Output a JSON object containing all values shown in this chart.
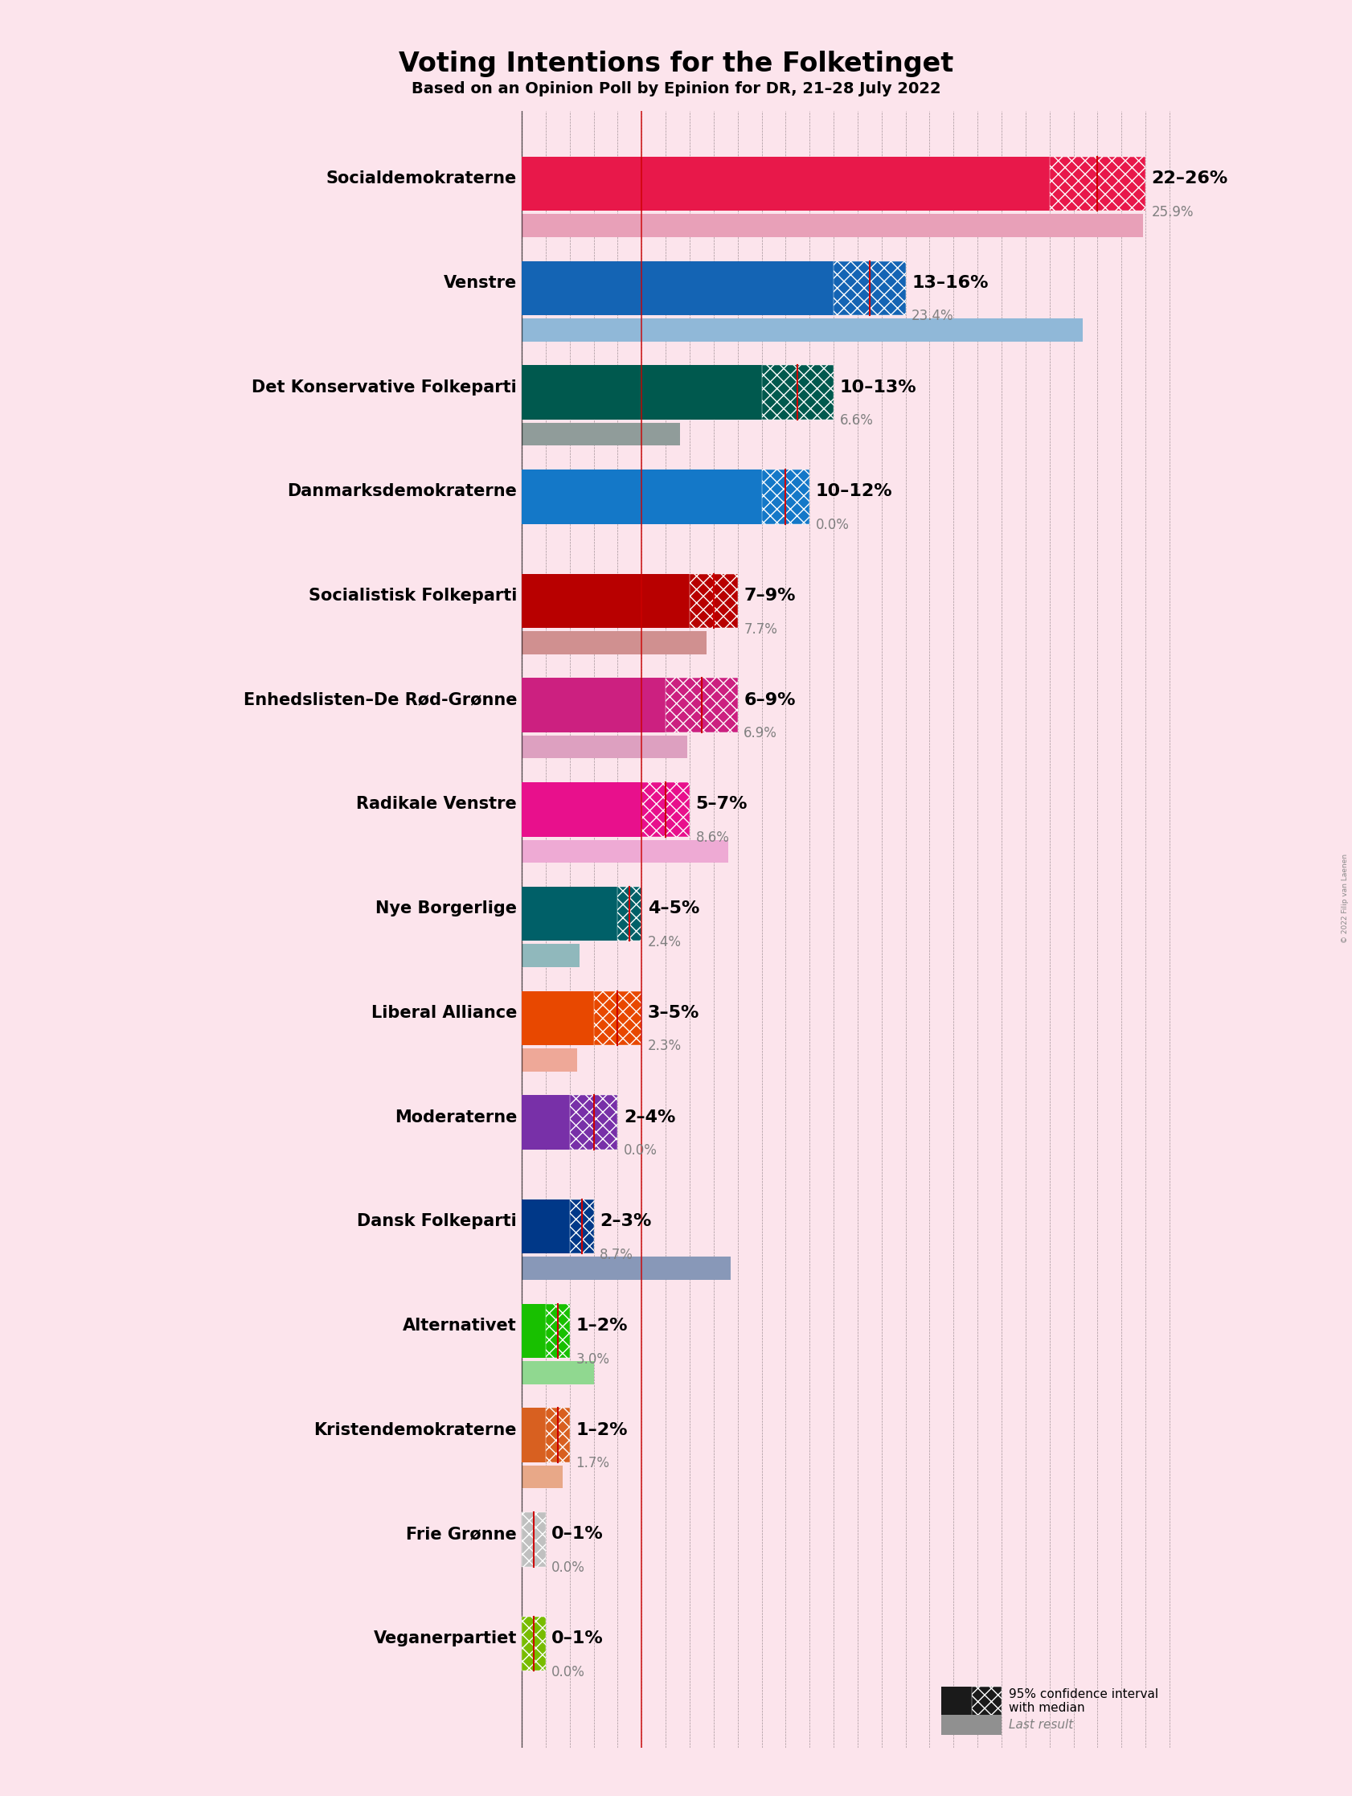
{
  "title": "Voting Intentions for the Folketinget",
  "subtitle": "Based on an Opinion Poll by Epinion for DR, 21–28 July 2022",
  "copyright": "© 2022 Filip van Laenen",
  "background_color": "#fce4ec",
  "parties": [
    {
      "name": "Socialdemokraterne",
      "ci_low": 22,
      "ci_high": 26,
      "median": 24,
      "last": 25.9,
      "color": "#e8184a",
      "last_color": "#e8a0b8"
    },
    {
      "name": "Venstre",
      "ci_low": 13,
      "ci_high": 16,
      "median": 14.5,
      "last": 23.4,
      "color": "#1464b4",
      "last_color": "#90b8d8"
    },
    {
      "name": "Det Konservative Folkeparti",
      "ci_low": 10,
      "ci_high": 13,
      "median": 11.5,
      "last": 6.6,
      "color": "#00594e",
      "last_color": "#909c9a"
    },
    {
      "name": "Danmarksdemokraterne",
      "ci_low": 10,
      "ci_high": 12,
      "median": 11,
      "last": 0.0,
      "color": "#1478c8",
      "last_color": "#88bcd8"
    },
    {
      "name": "Socialistisk Folkeparti",
      "ci_low": 7,
      "ci_high": 9,
      "median": 8,
      "last": 7.7,
      "color": "#b80000",
      "last_color": "#d09090"
    },
    {
      "name": "Enhedslisten–De Rød-Grønne",
      "ci_low": 6,
      "ci_high": 9,
      "median": 7.5,
      "last": 6.9,
      "color": "#cc2080",
      "last_color": "#dda0c0"
    },
    {
      "name": "Radikale Venstre",
      "ci_low": 5,
      "ci_high": 7,
      "median": 6,
      "last": 8.6,
      "color": "#e8108c",
      "last_color": "#eeaad4"
    },
    {
      "name": "Nye Borgerlige",
      "ci_low": 4,
      "ci_high": 5,
      "median": 4.5,
      "last": 2.4,
      "color": "#006068",
      "last_color": "#90b8bc"
    },
    {
      "name": "Liberal Alliance",
      "ci_low": 3,
      "ci_high": 5,
      "median": 4,
      "last": 2.3,
      "color": "#e84800",
      "last_color": "#eea898"
    },
    {
      "name": "Moderaterne",
      "ci_low": 2,
      "ci_high": 4,
      "median": 3,
      "last": 0.0,
      "color": "#7830a8",
      "last_color": "#bca0d0"
    },
    {
      "name": "Dansk Folkeparti",
      "ci_low": 2,
      "ci_high": 3,
      "median": 2.5,
      "last": 8.7,
      "color": "#003888",
      "last_color": "#8898b8"
    },
    {
      "name": "Alternativet",
      "ci_low": 1,
      "ci_high": 2,
      "median": 1.5,
      "last": 3.0,
      "color": "#18c000",
      "last_color": "#90d890"
    },
    {
      "name": "Kristendemokraterne",
      "ci_low": 1,
      "ci_high": 2,
      "median": 1.5,
      "last": 1.7,
      "color": "#d86020",
      "last_color": "#e8a888"
    },
    {
      "name": "Frie Grønne",
      "ci_low": 0,
      "ci_high": 1,
      "median": 0.5,
      "last": 0.0,
      "color": "#c0c0c0",
      "last_color": "#d0d0d0"
    },
    {
      "name": "Veganerpartiet",
      "ci_low": 0,
      "ci_high": 1,
      "median": 0.5,
      "last": 0.0,
      "color": "#78bc00",
      "last_color": "#b8d880"
    }
  ],
  "x_max": 28,
  "red_line_x": 5.0,
  "median_line_color": "#cc0000",
  "grid_line_color": "#000000",
  "label_fontsize": 15,
  "title_fontsize": 24,
  "subtitle_fontsize": 14,
  "range_fontsize": 16,
  "last_fontsize": 12
}
